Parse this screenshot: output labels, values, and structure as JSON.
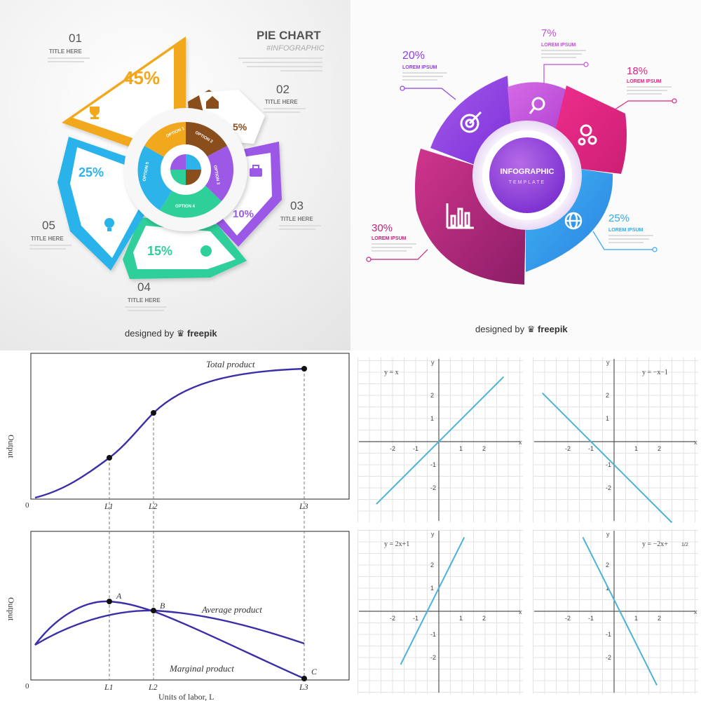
{
  "pie_infographic": {
    "title": "PIE CHART",
    "subtitle": "#INFOGRAPHIC",
    "credit_prefix": "designed by",
    "credit_brand": "freepik",
    "items": [
      {
        "num": "01",
        "label": "TITLE HERE",
        "percent": "45%",
        "option": "OPTION 1",
        "color": "#f2a81d",
        "icon": "trophy-icon"
      },
      {
        "num": "02",
        "label": "TITLE HERE",
        "percent": "5%",
        "option": "OPTION 2",
        "color": "#8a4d1c",
        "icon": "house-icon"
      },
      {
        "num": "03",
        "label": "TITLE HERE",
        "percent": "10%",
        "option": "OPTION 3",
        "color": "#9b59e6",
        "icon": "briefcase-icon"
      },
      {
        "num": "04",
        "label": "TITLE HERE",
        "percent": "15%",
        "option": "OPTION 4",
        "color": "#2fcf9a",
        "icon": "money-icon"
      },
      {
        "num": "05",
        "label": "TITLE HERE",
        "percent": "25%",
        "option": "OPTION 5",
        "color": "#2bb3ea",
        "icon": "bulb-icon"
      }
    ]
  },
  "ring_infographic": {
    "center_title": "INFOGRAPHIC",
    "center_subtitle": "TEMPLATE",
    "credit_prefix": "designed by",
    "credit_brand": "freepik",
    "items": [
      {
        "percent": "20%",
        "label": "LOREM IPSUM",
        "color": "#8e3fe0",
        "icon": "target-icon"
      },
      {
        "percent": "7%",
        "label": "LOREM IPSUM",
        "color": "#c24fd8",
        "icon": "search-icon"
      },
      {
        "percent": "18%",
        "label": "LOREM IPSUM",
        "color": "#e0257f",
        "icon": "gears-icon"
      },
      {
        "percent": "25%",
        "label": "LOREM IPSUM",
        "color": "#35a8ef",
        "icon": "globe-icon"
      },
      {
        "percent": "30%",
        "label": "LOREM IPSUM",
        "color": "#c0237a",
        "icon": "bar-chart-icon"
      }
    ]
  },
  "economics": {
    "top_ylabel": "Output",
    "bottom_ylabel": "Output",
    "xlabel": "Units of labor, L",
    "origin_label": "0",
    "ticks": [
      "L1",
      "L2",
      "L3"
    ],
    "total_label": "Total product",
    "average_label": "Average product",
    "marginal_label": "Marginal product",
    "point_a": "A",
    "point_b": "B",
    "point_c": "C"
  },
  "linear_graphs": {
    "axis_x": "x",
    "axis_y": "y",
    "graphs": [
      {
        "equation": "y = x",
        "x_ticks": [
          "-2",
          "-1",
          "1",
          "2"
        ],
        "y_ticks": [
          "2",
          "1",
          "-1",
          "-2"
        ]
      },
      {
        "equation": "y = −x−1",
        "x_ticks": [
          "-2",
          "-1",
          "1",
          "2"
        ],
        "y_ticks": [
          "2",
          "1",
          "-1",
          "-2"
        ]
      },
      {
        "equation": "y = 2x+1",
        "x_ticks": [
          "-2",
          "-1",
          "1",
          "2"
        ],
        "y_ticks": [
          "2",
          "1",
          "-1",
          "-2"
        ]
      },
      {
        "equation": "y = −2x+",
        "equation_fraction": "1/2",
        "x_ticks": [
          "-2",
          "-1",
          "1",
          "2"
        ],
        "y_ticks": [
          "2",
          "1",
          "-1",
          "-2"
        ]
      }
    ],
    "line_color": "#4ab3d6"
  }
}
